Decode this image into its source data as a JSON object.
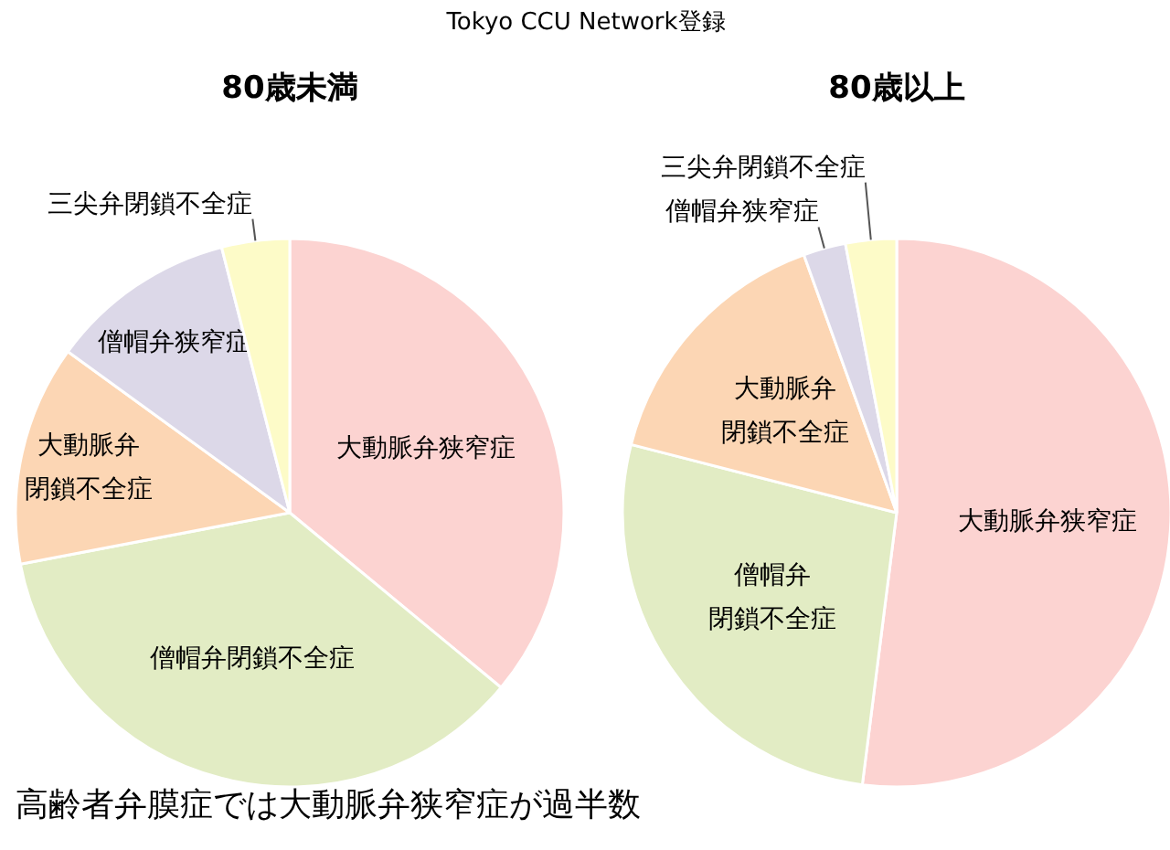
{
  "chart_data": [
    {
      "type": "pie",
      "title": "80歳未満",
      "annotations": [
        "Tokyo CCU Network登録",
        "高齢者弁膜症では大動脈弁狭窄症が過半数"
      ],
      "categories": [
        "大動脈弁狭窄症",
        "僧帽弁閉鎖不全症",
        "大動脈弁閉鎖不全症",
        "僧帽弁狭窄症",
        "三尖弁閉鎖不全症"
      ],
      "values": [
        36,
        36,
        13,
        11,
        4
      ],
      "colors": [
        "#fcd3d1",
        "#e2ecc4",
        "#fcd6b4",
        "#dcd8e8",
        "#fdfbc8"
      ]
    },
    {
      "type": "pie",
      "title": "80歳以上",
      "categories": [
        "大動脈弁狭窄症",
        "僧帽弁閉鎖不全症",
        "大動脈弁閉鎖不全症",
        "僧帽弁狭窄症",
        "三尖弁閉鎖不全症"
      ],
      "values": [
        52,
        27,
        15.5,
        2.5,
        3
      ],
      "colors": [
        "#fcd3d1",
        "#e2ecc4",
        "#fcd6b4",
        "#dcd8e8",
        "#fdfbc8"
      ]
    }
  ]
}
